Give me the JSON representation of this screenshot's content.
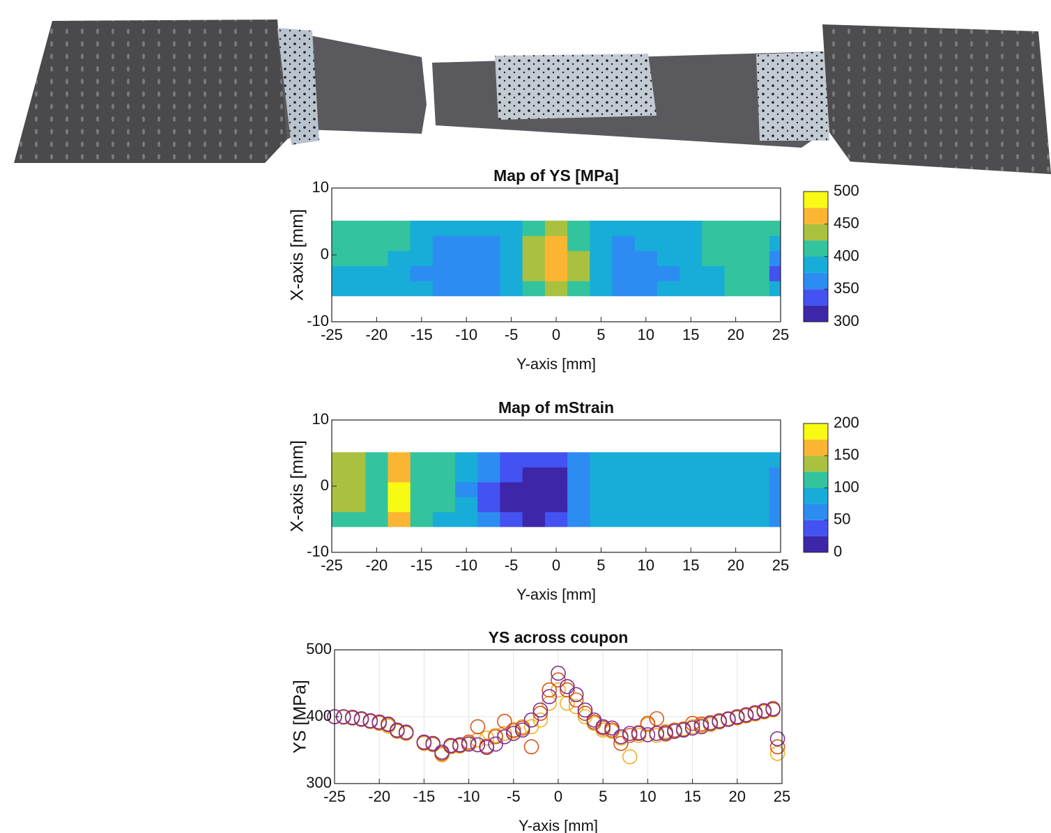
{
  "chart_data": [
    {
      "type": "contour",
      "title": "Map of YS [MPa]",
      "xlabel": "Y-axis [mm]",
      "ylabel": "X-axis [mm]",
      "x": [
        -25,
        -22.5,
        -20,
        -17.5,
        -15,
        -12.5,
        -10,
        -7.5,
        -5,
        -2.5,
        0,
        2.5,
        5,
        7.5,
        10,
        12.5,
        15,
        17.5,
        20,
        22.5,
        25
      ],
      "y": [
        -5,
        -2.75,
        -0.5,
        1.75,
        4
      ],
      "z": [
        [
          390,
          390,
          385,
          385,
          375,
          365,
          365,
          370,
          380,
          415,
          430,
          410,
          380,
          370,
          370,
          380,
          385,
          390,
          400,
          400,
          375
        ],
        [
          395,
          395,
          395,
          390,
          370,
          355,
          355,
          360,
          380,
          430,
          460,
          425,
          375,
          360,
          360,
          370,
          385,
          395,
          405,
          405,
          340
        ],
        [
          400,
          405,
          400,
          395,
          375,
          350,
          355,
          360,
          385,
          440,
          470,
          430,
          380,
          365,
          365,
          375,
          385,
          400,
          410,
          410,
          370
        ],
        [
          405,
          410,
          405,
          400,
          385,
          370,
          365,
          370,
          390,
          430,
          455,
          420,
          385,
          370,
          375,
          380,
          390,
          405,
          415,
          415,
          395
        ],
        [
          410,
          410,
          408,
          405,
          395,
          385,
          380,
          378,
          390,
          420,
          430,
          410,
          385,
          375,
          380,
          385,
          390,
          405,
          410,
          415,
          405
        ]
      ],
      "xlim": [
        -25,
        25
      ],
      "ylim": [
        -10,
        10
      ],
      "xticks": [
        -25,
        -20,
        -15,
        -10,
        -5,
        0,
        5,
        10,
        15,
        20,
        25
      ],
      "yticks": [
        -10,
        0,
        10
      ],
      "levels": [
        300,
        325,
        350,
        375,
        400,
        425,
        450,
        475,
        500
      ],
      "colors": [
        "#3e26a8",
        "#4352f0",
        "#2c8cf2",
        "#18acd8",
        "#33c49e",
        "#a9c13f",
        "#fbb532",
        "#f9fa14"
      ],
      "clim": [
        300,
        500
      ],
      "cticks": [
        300,
        350,
        400,
        450,
        500
      ]
    },
    {
      "type": "contour",
      "title": "Map of mStrain",
      "xlabel": "Y-axis [mm]",
      "ylabel": "X-axis [mm]",
      "x": [
        -25,
        -22.5,
        -20,
        -17.5,
        -15,
        -12.5,
        -10,
        -7.5,
        -5,
        -2.5,
        0,
        2.5,
        5,
        7.5,
        10,
        12.5,
        15,
        17.5,
        20,
        22.5,
        25
      ],
      "y": [
        -5,
        -2.75,
        -0.5,
        1.75,
        4
      ],
      "z": [
        [
          120,
          115,
          105,
          160,
          105,
          95,
          80,
          55,
          35,
          20,
          25,
          60,
          85,
          90,
          90,
          90,
          90,
          85,
          85,
          80,
          65
        ],
        [
          140,
          135,
          115,
          180,
          110,
          100,
          75,
          45,
          20,
          5,
          10,
          55,
          90,
          95,
          95,
          90,
          90,
          90,
          90,
          85,
          55
        ],
        [
          145,
          140,
          115,
          185,
          110,
          100,
          70,
          45,
          15,
          5,
          10,
          55,
          90,
          95,
          95,
          95,
          95,
          95,
          90,
          85,
          60
        ],
        [
          140,
          135,
          115,
          170,
          115,
          100,
          75,
          50,
          25,
          15,
          20,
          60,
          90,
          95,
          95,
          95,
          95,
          95,
          90,
          90,
          70
        ],
        [
          130,
          125,
          110,
          150,
          110,
          100,
          80,
          55,
          40,
          30,
          35,
          70,
          90,
          95,
          95,
          95,
          95,
          95,
          95,
          90,
          80
        ]
      ],
      "xlim": [
        -25,
        25
      ],
      "ylim": [
        -10,
        10
      ],
      "xticks": [
        -25,
        -20,
        -15,
        -10,
        -5,
        0,
        5,
        10,
        15,
        20,
        25
      ],
      "yticks": [
        -10,
        0,
        10
      ],
      "levels": [
        0,
        25,
        50,
        75,
        100,
        125,
        150,
        175,
        200
      ],
      "colors": [
        "#3e26a8",
        "#4352f0",
        "#2c8cf2",
        "#18acd8",
        "#33c49e",
        "#a9c13f",
        "#fbb532",
        "#f9fa14"
      ],
      "clim": [
        0,
        200
      ],
      "cticks": [
        0,
        50,
        100,
        150,
        200
      ]
    },
    {
      "type": "scatter",
      "title": "YS across coupon",
      "xlabel": "Y-axis [mm]",
      "ylabel": "YS [MPa]",
      "x": [
        -25,
        -24,
        -23,
        -22,
        -21,
        -20,
        -19,
        -18,
        -17,
        -15,
        -14,
        -13,
        -12,
        -11,
        -10,
        -9,
        -8,
        -7,
        -6,
        -5,
        -4,
        -3,
        -2,
        -1,
        0,
        1,
        2,
        3,
        4,
        5,
        6,
        7,
        8,
        9,
        10,
        11,
        12,
        13,
        14,
        15,
        16,
        17,
        18,
        19,
        20,
        21,
        22,
        23,
        24,
        24.5
      ],
      "series": [
        {
          "color": "#edb120",
          "values": [
            400,
            399,
            398,
            396,
            393,
            390,
            386,
            378,
            375,
            360,
            358,
            343,
            355,
            356,
            360,
            365,
            368,
            372,
            375,
            378,
            385,
            385,
            395,
            420,
            440,
            420,
            415,
            400,
            390,
            380,
            378,
            368,
            340,
            372,
            388,
            372,
            378,
            378,
            382,
            385,
            387,
            388,
            392,
            396,
            398,
            401,
            404,
            407,
            410,
            345
          ]
        },
        {
          "color": "#d95319",
          "values": [
            400,
            400,
            398,
            396,
            393,
            391,
            388,
            379,
            376,
            361,
            359,
            345,
            356,
            357,
            362,
            385,
            356,
            370,
            393,
            380,
            383,
            355,
            405,
            440,
            455,
            440,
            425,
            405,
            392,
            383,
            380,
            360,
            372,
            376,
            390,
            397,
            374,
            380,
            381,
            390,
            389,
            391,
            394,
            397,
            399,
            402,
            405,
            408,
            411,
            355
          ]
        },
        {
          "color": "#7e2f8e",
          "values": [
            400,
            400,
            399,
            397,
            394,
            392,
            389,
            380,
            377,
            362,
            360,
            347,
            357,
            358,
            359,
            358,
            354,
            359,
            370,
            375,
            380,
            395,
            410,
            430,
            465,
            445,
            433,
            410,
            395,
            385,
            383,
            370,
            375,
            375,
            373,
            375,
            376,
            378,
            380,
            383,
            385,
            390,
            393,
            396,
            400,
            403,
            406,
            409,
            412,
            367
          ]
        }
      ],
      "xlim": [
        -25,
        25
      ],
      "ylim": [
        300,
        500
      ],
      "xticks": [
        -25,
        -20,
        -15,
        -10,
        -5,
        0,
        5,
        10,
        15,
        20,
        25
      ],
      "yticks": [
        300,
        400,
        500
      ],
      "grid": true
    }
  ]
}
